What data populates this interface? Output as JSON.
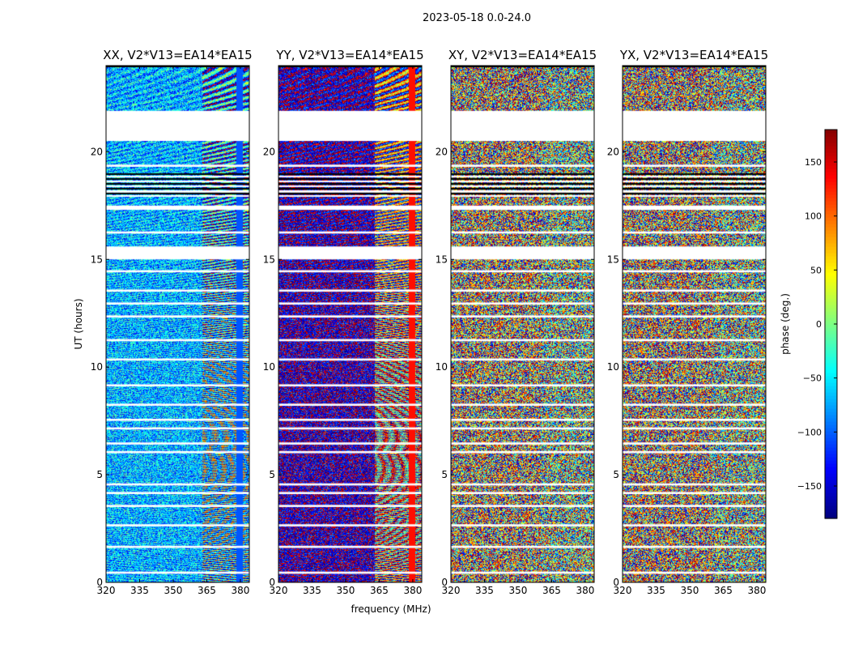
{
  "chart_data": {
    "type": "heatmap",
    "suptitle": "2023-05-18 0.0-24.0",
    "xlabel": "frequency (MHz)",
    "ylabel": "UT (hours)",
    "xlim": [
      320,
      384
    ],
    "ylim": [
      0,
      24
    ],
    "xticks": [
      320,
      335,
      350,
      365,
      380
    ],
    "yticks": [
      0,
      5,
      10,
      15,
      20
    ],
    "colorbar": {
      "label": "phase (deg.)",
      "range": [
        -180,
        180
      ],
      "ticks": [
        -150,
        -100,
        -50,
        0,
        50,
        100,
        150
      ],
      "colormap": "jet"
    },
    "flag_bands_hours": [
      [
        21.9,
        20.5
      ],
      [
        19.4,
        19.3
      ],
      [
        18.2,
        18.1
      ],
      [
        17.5,
        17.3
      ],
      [
        16.3,
        16.2
      ],
      [
        15.6,
        15.0
      ],
      [
        14.5,
        14.4
      ],
      [
        13.6,
        13.5
      ],
      [
        13.0,
        12.9
      ],
      [
        12.4,
        12.3
      ],
      [
        11.3,
        11.2
      ],
      [
        10.4,
        10.3
      ],
      [
        9.2,
        9.1
      ],
      [
        8.3,
        8.2
      ],
      [
        7.6,
        7.5
      ],
      [
        7.2,
        7.1
      ],
      [
        6.5,
        6.4
      ],
      [
        6.1,
        6.0
      ],
      [
        4.6,
        4.5
      ],
      [
        4.2,
        4.1
      ],
      [
        3.6,
        3.5
      ],
      [
        2.7,
        2.6
      ],
      [
        1.7,
        1.6
      ],
      [
        0.5,
        0.4
      ]
    ],
    "dense_flag_region_hours": [
      17.9,
      19.0
    ],
    "panels": [
      {
        "title": "XX, V2*V13=EA14*EA15",
        "phase_low_band_deg": -70,
        "phase_high_band_deg": -85,
        "band_split_mhz": 363,
        "fringe_strength": 0.55,
        "noise": 0.35
      },
      {
        "title": "YY, V2*V13=EA14*EA15",
        "phase_low_band_deg": -160,
        "phase_high_band_deg": 150,
        "band_split_mhz": 363,
        "fringe_strength": 0.65,
        "noise": 0.35
      },
      {
        "title": "XY, V2*V13=EA14*EA15",
        "phase_low_band_deg": 120,
        "phase_high_band_deg": 0,
        "band_split_mhz": 360,
        "fringe_strength": 0.4,
        "noise": 0.9
      },
      {
        "title": "YX, V2*V13=EA14*EA15",
        "phase_low_band_deg": 130,
        "phase_high_band_deg": 0,
        "band_split_mhz": 360,
        "fringe_strength": 0.4,
        "noise": 0.9
      }
    ]
  }
}
